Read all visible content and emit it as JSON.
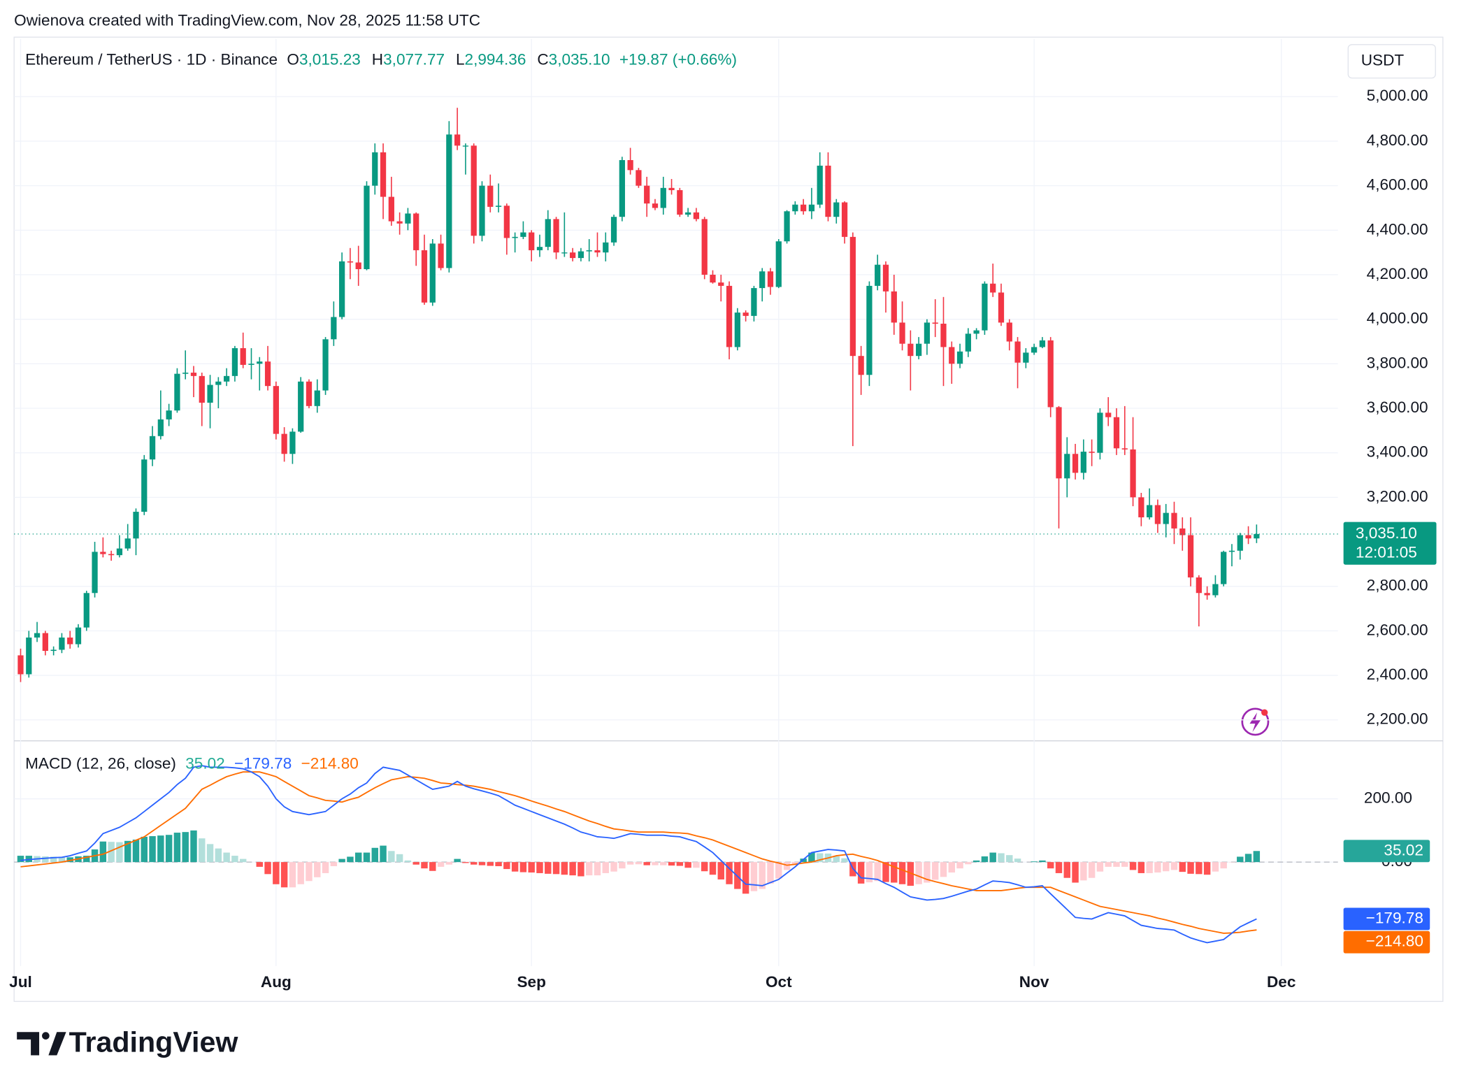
{
  "header": {
    "credit": "Owienova created with TradingView.com, Nov 28, 2025 11:58 UTC"
  },
  "chart_data": {
    "type": "candlestick",
    "title": "Ethereum / TetherUS · 1D · Binance",
    "legend": [
      {
        "prefix": "O",
        "label": "3,015.23"
      },
      {
        "prefix": "H",
        "label": "3,077.77"
      },
      {
        "prefix": "L",
        "label": "2,994.36"
      },
      {
        "prefix": "C",
        "label": "3,035.10"
      }
    ],
    "change": "+19.87 (+0.66%)",
    "legend_color": "#089981",
    "y_axis_label": "USDT",
    "last_price_label": "3,035.10",
    "countdown": "12:01:05",
    "up_color": "#089981",
    "down_color": "#f23645",
    "grid": true,
    "open": [
      2490,
      2405,
      2570,
      2590,
      2510,
      2515,
      2570,
      2540,
      2615,
      2770,
      2955,
      2945,
      2940,
      2970,
      3015,
      3135,
      3370,
      3475,
      3550,
      3590,
      3755,
      3760,
      3745,
      3625,
      3705,
      3720,
      3745,
      3870,
      3795,
      3800,
      3810,
      3700,
      3485,
      3395,
      3495,
      3720,
      3610,
      3680,
      3910,
      4010,
      4260,
      4255,
      4225,
      4600,
      4750,
      4550,
      4440,
      4430,
      4475,
      4310,
      4075,
      4340,
      4230,
      4830,
      4780,
      4780,
      4375,
      4600,
      4505,
      4510,
      4365,
      4370,
      4390,
      4310,
      4325,
      4450,
      4300,
      4300,
      4275,
      4305,
      4310,
      4300,
      4345,
      4460,
      4715,
      4670,
      4600,
      4520,
      4500,
      4590,
      4580,
      4470,
      4480,
      4450,
      4200,
      4165,
      4150,
      3875,
      4030,
      4015,
      4140,
      4215,
      4145,
      4350,
      4485,
      4515,
      4485,
      4515,
      4690,
      4460,
      4525,
      4370,
      3835,
      3750,
      4150,
      4245,
      4125,
      3985,
      3890,
      3835,
      3890,
      3985,
      3980,
      3875,
      3800,
      3855,
      3935,
      3950,
      4160,
      4120,
      3985,
      3900,
      3805,
      3850,
      3875,
      3905,
      3605,
      3285,
      3395,
      3310,
      3405,
      3400,
      3580,
      3560,
      3420,
      3415,
      3200,
      3110,
      3165,
      3080,
      3130,
      3060,
      3030,
      2840,
      2770,
      2760,
      2810,
      2955,
      2960,
      3030,
      3015.23
    ],
    "high": [
      2520,
      2600,
      2640,
      2600,
      2530,
      2590,
      2600,
      2630,
      2780,
      3000,
      3020,
      2960,
      3030,
      3080,
      3150,
      3390,
      3520,
      3680,
      3620,
      3780,
      3860,
      3790,
      3760,
      3750,
      3740,
      3780,
      3880,
      3940,
      3870,
      3830,
      3880,
      3720,
      3515,
      3510,
      3740,
      3730,
      3730,
      3920,
      4080,
      4300,
      4320,
      4330,
      4620,
      4790,
      4790,
      4640,
      4480,
      4500,
      4480,
      4380,
      4360,
      4380,
      4890,
      4950,
      4790,
      4790,
      4620,
      4650,
      4610,
      4520,
      4390,
      4440,
      4400,
      4380,
      4490,
      4460,
      4480,
      4320,
      4320,
      4360,
      4390,
      4390,
      4470,
      4730,
      4770,
      4680,
      4640,
      4540,
      4640,
      4630,
      4590,
      4500,
      4500,
      4460,
      4220,
      4200,
      4170,
      4050,
      4040,
      4150,
      4230,
      4230,
      4360,
      4490,
      4530,
      4540,
      4590,
      4750,
      4750,
      4540,
      4530,
      4390,
      3880,
      4170,
      4290,
      4260,
      4200,
      4080,
      3950,
      3920,
      4000,
      4090,
      4100,
      3900,
      3890,
      3960,
      3960,
      4170,
      4250,
      4160,
      4000,
      3920,
      3870,
      3890,
      3920,
      3920,
      3610,
      3470,
      3440,
      3460,
      3460,
      3600,
      3650,
      3600,
      3610,
      3560,
      3220,
      3240,
      3190,
      3170,
      3180,
      3110,
      3110,
      2850,
      2800,
      2850,
      2960,
      2990,
      3040,
      3070,
      3077.77
    ],
    "low": [
      2370,
      2390,
      2550,
      2490,
      2490,
      2500,
      2520,
      2525,
      2600,
      2750,
      2930,
      2915,
      2930,
      2960,
      2940,
      3120,
      3340,
      3460,
      3520,
      3580,
      3730,
      3650,
      3520,
      3510,
      3600,
      3700,
      3720,
      3780,
      3730,
      3680,
      3680,
      3460,
      3360,
      3350,
      3490,
      3600,
      3580,
      3660,
      3880,
      4000,
      4180,
      4150,
      4220,
      4560,
      4450,
      4420,
      4380,
      4400,
      4240,
      4065,
      4060,
      4220,
      4210,
      4760,
      4650,
      4340,
      4350,
      4480,
      4480,
      4290,
      4300,
      4360,
      4260,
      4280,
      4310,
      4270,
      4280,
      4260,
      4260,
      4260,
      4280,
      4260,
      4330,
      4440,
      4650,
      4590,
      4460,
      4490,
      4470,
      4560,
      4460,
      4460,
      4440,
      4180,
      4160,
      4080,
      3820,
      3860,
      3990,
      3990,
      4080,
      4110,
      4140,
      4340,
      4470,
      4470,
      4450,
      4500,
      4440,
      4430,
      4340,
      3430,
      3660,
      3700,
      4130,
      4030,
      3930,
      3860,
      3680,
      3820,
      3840,
      3920,
      3700,
      3710,
      3780,
      3830,
      3910,
      3930,
      4100,
      3970,
      3860,
      3690,
      3780,
      3840,
      3870,
      3560,
      3060,
      3200,
      3280,
      3280,
      3340,
      3370,
      3520,
      3390,
      3390,
      3160,
      3070,
      3100,
      3040,
      3020,
      2990,
      2960,
      2800,
      2620,
      2740,
      2750,
      2800,
      2890,
      2920,
      2990,
      2994.36
    ],
    "close": [
      2405,
      2570,
      2590,
      2510,
      2515,
      2570,
      2540,
      2615,
      2770,
      2955,
      2945,
      2940,
      2970,
      3015,
      3135,
      3370,
      3475,
      3550,
      3590,
      3755,
      3760,
      3745,
      3625,
      3705,
      3720,
      3745,
      3870,
      3795,
      3800,
      3810,
      3700,
      3485,
      3395,
      3495,
      3720,
      3610,
      3680,
      3910,
      4010,
      4260,
      4255,
      4225,
      4600,
      4750,
      4550,
      4440,
      4430,
      4475,
      4310,
      4075,
      4340,
      4230,
      4830,
      4780,
      4780,
      4375,
      4600,
      4505,
      4510,
      4365,
      4370,
      4390,
      4310,
      4325,
      4450,
      4300,
      4300,
      4275,
      4305,
      4310,
      4300,
      4345,
      4460,
      4715,
      4670,
      4600,
      4520,
      4500,
      4590,
      4580,
      4470,
      4480,
      4450,
      4200,
      4165,
      4150,
      3875,
      4030,
      4015,
      4140,
      4215,
      4145,
      4350,
      4485,
      4515,
      4485,
      4515,
      4690,
      4460,
      4525,
      4370,
      3835,
      3750,
      4150,
      4245,
      4125,
      3985,
      3890,
      3835,
      3890,
      3985,
      3980,
      3875,
      3800,
      3855,
      3935,
      3950,
      4160,
      4120,
      3985,
      3900,
      3805,
      3850,
      3875,
      3905,
      3605,
      3285,
      3395,
      3310,
      3405,
      3400,
      3580,
      3560,
      3420,
      3415,
      3200,
      3110,
      3165,
      3080,
      3130,
      3060,
      3030,
      2840,
      2770,
      2760,
      2810,
      2955,
      2960,
      3030,
      3015.23,
      3035.1
    ],
    "ylim": [
      2108,
      5259
    ],
    "yticks": [
      {
        "value": 2200,
        "label": "2,200.00"
      },
      {
        "value": 2400,
        "label": "2,400.00"
      },
      {
        "value": 2600,
        "label": "2,600.00"
      },
      {
        "value": 2800,
        "label": "2,800.00"
      },
      {
        "value": 3200,
        "label": "3,200.00"
      },
      {
        "value": 3400,
        "label": "3,400.00"
      },
      {
        "value": 3600,
        "label": "3,600.00"
      },
      {
        "value": 3800,
        "label": "3,800.00"
      },
      {
        "value": 4000,
        "label": "4,000.00"
      },
      {
        "value": 4200,
        "label": "4,200.00"
      },
      {
        "value": 4400,
        "label": "4,400.00"
      },
      {
        "value": 4600,
        "label": "4,600.00"
      },
      {
        "value": 4800,
        "label": "4,800.00"
      },
      {
        "value": 5000,
        "label": "5,000.00"
      }
    ],
    "xlim": [
      -0.79,
      159.87
    ],
    "xticks": [
      {
        "value": 0,
        "label": "Jul"
      },
      {
        "value": 31,
        "label": "Aug"
      },
      {
        "value": 62,
        "label": "Sep"
      },
      {
        "value": 92,
        "label": "Oct"
      },
      {
        "value": 123,
        "label": "Nov"
      },
      {
        "value": 153,
        "label": "Dec"
      }
    ],
    "indicator": {
      "type": "macd",
      "title": "MACD (12, 26, close)",
      "histogram_label": "35.02",
      "macd_label": "−179.78",
      "signal_label": "−214.80",
      "macd_color": "#2962ff",
      "signal_color": "#ff6d00",
      "hist_label_color": "#22ab94",
      "hist_colors": {
        "up_strong": "#26a69a",
        "up_weak": "#b2dfdb",
        "down_strong": "#ff5252",
        "down_weak": "#ffcdd2"
      },
      "ylim": [
        -329,
        382
      ],
      "yticks": [
        {
          "value": 0,
          "label": "0.00"
        },
        {
          "value": 200,
          "label": "200.00"
        }
      ],
      "macd": [
        5,
        8,
        10,
        12,
        14,
        15,
        20,
        28,
        35,
        60,
        90,
        100,
        110,
        125,
        140,
        160,
        180,
        200,
        220,
        245,
        265,
        300,
        305,
        300,
        300,
        300,
        298,
        295,
        285,
        270,
        240,
        200,
        175,
        160,
        155,
        150,
        155,
        160,
        180,
        200,
        215,
        235,
        250,
        280,
        300,
        295,
        290,
        275,
        260,
        245,
        230,
        235,
        240,
        255,
        240,
        232,
        225,
        218,
        210,
        195,
        180,
        170,
        160,
        150,
        140,
        130,
        120,
        108,
        95,
        88,
        80,
        78,
        75,
        82,
        90,
        88,
        85,
        85,
        85,
        82,
        80,
        72,
        65,
        48,
        30,
        5,
        -20,
        -45,
        -70,
        -72,
        -75,
        -65,
        -55,
        -35,
        -15,
        8,
        30,
        35,
        40,
        38,
        35,
        -20,
        -50,
        -52,
        -55,
        -68,
        -80,
        -95,
        -110,
        -115,
        -120,
        -118,
        -115,
        -108,
        -100,
        -92,
        -85,
        -72,
        -60,
        -62,
        -65,
        -72,
        -80,
        -78,
        -75,
        -100,
        -125,
        -150,
        -175,
        -178,
        -180,
        -170,
        -160,
        -165,
        -170,
        -185,
        -200,
        -205,
        -210,
        -212,
        -215,
        -228,
        -240,
        -248,
        -255,
        -250,
        -245,
        -225,
        -205,
        -192,
        -179.78
      ],
      "signal": [
        -15,
        -12,
        -9,
        -6,
        -3,
        0,
        5,
        10,
        15,
        20,
        25,
        36,
        47,
        58,
        69,
        80,
        98,
        116,
        134,
        152,
        170,
        200,
        230,
        243,
        257,
        270,
        278,
        285,
        285,
        285,
        278,
        270,
        255,
        240,
        225,
        210,
        203,
        195,
        193,
        190,
        198,
        205,
        220,
        235,
        248,
        260,
        265,
        270,
        268,
        265,
        258,
        250,
        248,
        245,
        243,
        240,
        235,
        230,
        223,
        217,
        210,
        202,
        193,
        185,
        177,
        168,
        160,
        150,
        140,
        130,
        122,
        113,
        105,
        102,
        98,
        95,
        95,
        95,
        95,
        93,
        92,
        90,
        83,
        77,
        70,
        60,
        50,
        40,
        30,
        20,
        10,
        3,
        -3,
        -10,
        -7,
        -3,
        0,
        7,
        13,
        20,
        23,
        25,
        18,
        12,
        5,
        -5,
        -15,
        -25,
        -35,
        -45,
        -55,
        -62,
        -68,
        -75,
        -80,
        -85,
        -90,
        -90,
        -90,
        -90,
        -87,
        -83,
        -80,
        -80,
        -80,
        -80,
        -90,
        -100,
        -110,
        -120,
        -130,
        -140,
        -145,
        -150,
        -155,
        -160,
        -165,
        -170,
        -177,
        -183,
        -190,
        -197,
        -203,
        -210,
        -215,
        -220,
        -225,
        -224,
        -222,
        -218,
        -214.8
      ],
      "histogram": [
        20,
        20,
        19,
        18,
        17,
        15,
        15,
        18,
        20,
        40,
        65,
        64,
        63,
        67,
        71,
        80,
        82,
        84,
        86,
        93,
        95,
        100,
        75,
        57,
        43,
        30,
        20,
        10,
        0,
        -15,
        -38,
        -70,
        -80,
        -80,
        -70,
        -60,
        -48,
        -35,
        -13,
        10,
        17,
        30,
        30,
        45,
        52,
        35,
        25,
        5,
        -8,
        -20,
        -28,
        -15,
        -8,
        10,
        -3,
        -8,
        -10,
        -12,
        -13,
        -22,
        -30,
        -32,
        -33,
        -35,
        -37,
        -38,
        -40,
        -42,
        -45,
        -42,
        -42,
        -35,
        -30,
        -20,
        -8,
        -7,
        -10,
        -10,
        -10,
        -11,
        -12,
        -18,
        -18,
        -29,
        -40,
        -55,
        -70,
        -85,
        -100,
        -92,
        -85,
        -68,
        -52,
        -25,
        -8,
        11,
        30,
        28,
        27,
        18,
        12,
        -45,
        -68,
        -64,
        -60,
        -63,
        -65,
        -70,
        -75,
        -70,
        -65,
        -56,
        -47,
        -33,
        -20,
        -7,
        5,
        18,
        30,
        28,
        22,
        11,
        0,
        2,
        5,
        -20,
        -35,
        -50,
        -65,
        -58,
        -50,
        -30,
        -15,
        -15,
        -15,
        -25,
        -35,
        -35,
        -33,
        -29,
        -25,
        -31,
        -37,
        -38,
        -40,
        -30,
        -20,
        -1,
        17,
        26,
        35.02
      ]
    }
  },
  "footer": {
    "brand": "TradingView"
  }
}
